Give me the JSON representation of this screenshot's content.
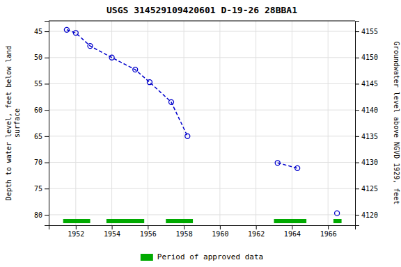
{
  "chart_data": {
    "type": "line",
    "title": "USGS 314529109420601 D-19-26 28BBA1",
    "y_label": "Depth to water level, feet below land\nsurface",
    "y2_label": "Groundwater level above NGVD 1929, feet",
    "series": [
      {
        "x": [
          1951.5,
          1952.0,
          1952.8,
          1954.0,
          1955.3,
          1956.1,
          1957.3,
          1958.2
        ],
        "values": [
          44.7,
          45.3,
          47.8,
          50.0,
          52.3,
          54.7,
          58.5,
          65.0
        ],
        "color": "#0000cc",
        "marker": "circle",
        "line_style": "dashed"
      },
      {
        "x": [
          1963.2,
          1964.3
        ],
        "values": [
          70.1,
          71.1
        ],
        "color": "#0000cc",
        "marker": "circle",
        "line_style": "dashed"
      },
      {
        "x": [
          1966.5
        ],
        "values": [
          79.7
        ],
        "color": "#0000cc",
        "marker": "circle",
        "line_style": "none"
      }
    ],
    "approved_periods": {
      "name": "Period of approved data",
      "color": "#00aa00",
      "ranges": [
        [
          1951.3,
          1952.8
        ],
        [
          1953.7,
          1955.8
        ],
        [
          1957.0,
          1958.5
        ],
        [
          1963.0,
          1964.8
        ],
        [
          1966.3,
          1966.75
        ]
      ]
    },
    "xlim": [
      1950.5,
      1967.5
    ],
    "xticks": [
      1952,
      1954,
      1956,
      1958,
      1960,
      1962,
      1964,
      1966
    ],
    "ylim": [
      82,
      43
    ],
    "yticks": [
      45,
      50,
      55,
      60,
      65,
      70,
      75,
      80
    ],
    "y2lim": [
      4118,
      4157
    ],
    "y2ticks": [
      4155,
      4150,
      4145,
      4140,
      4135,
      4130,
      4125,
      4120
    ],
    "grid": true
  }
}
